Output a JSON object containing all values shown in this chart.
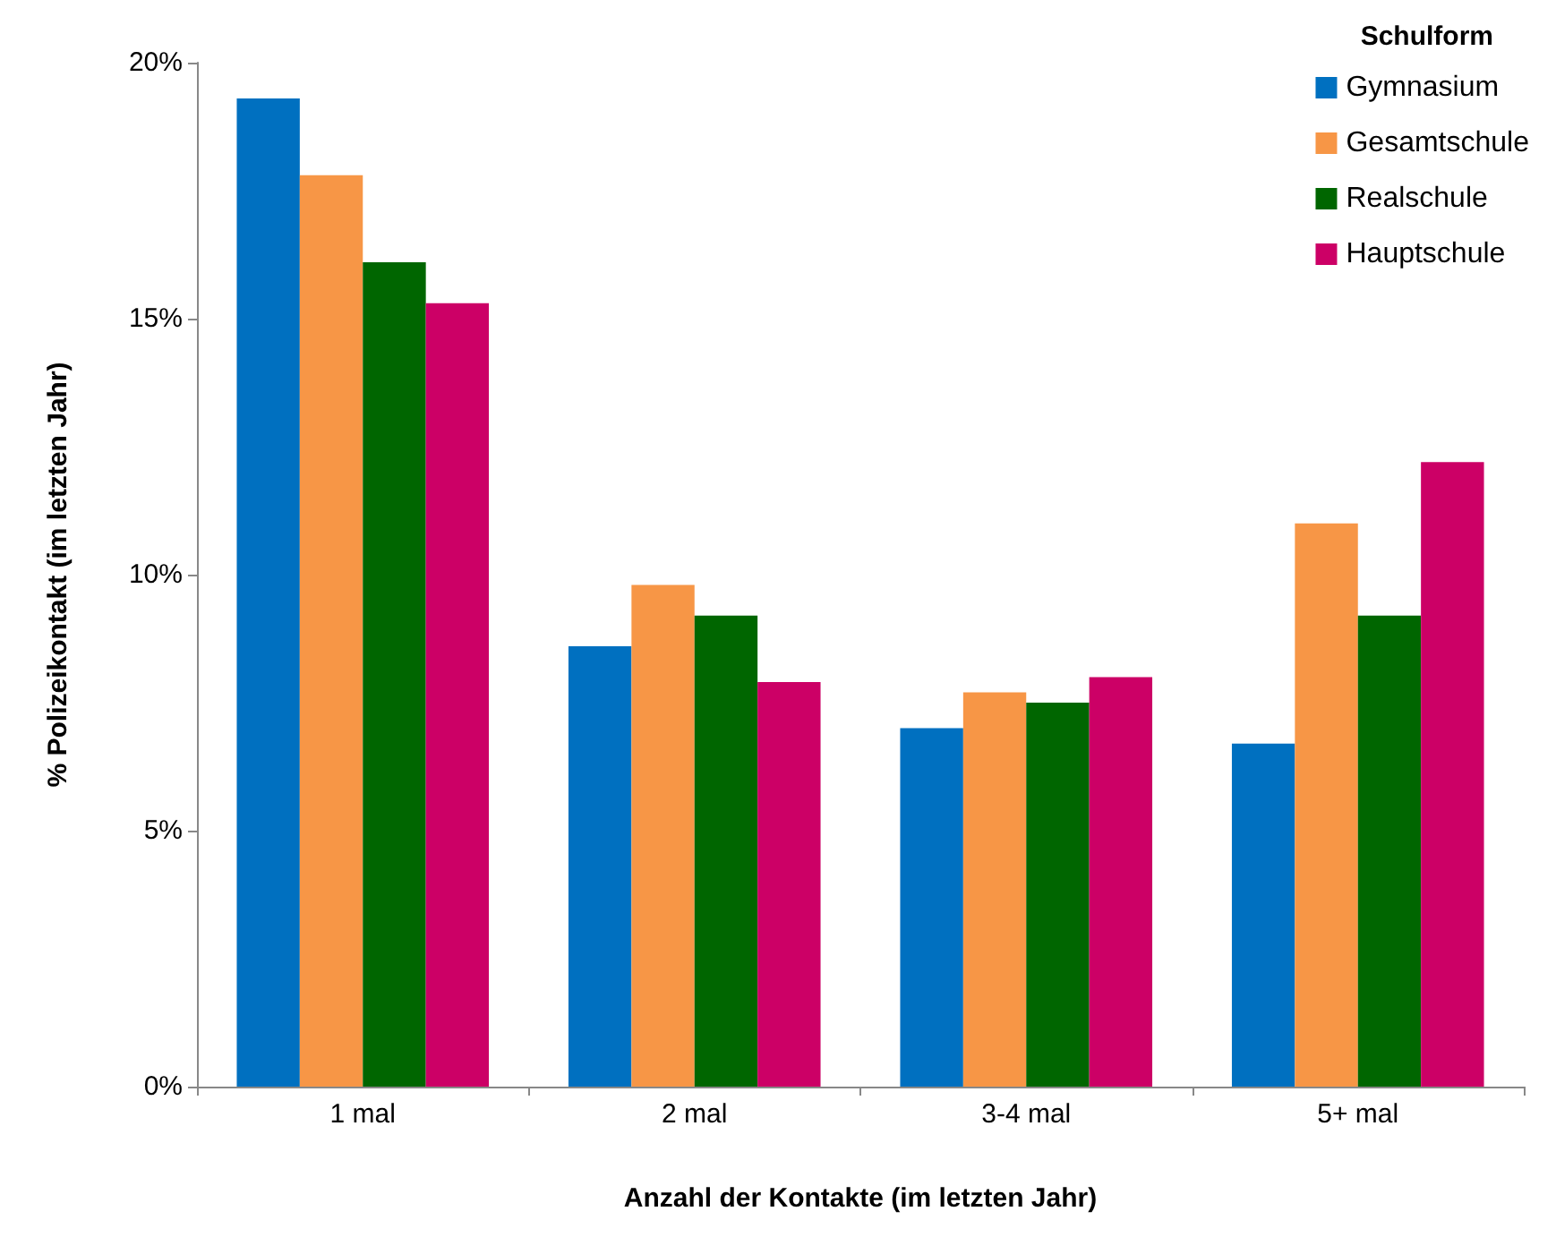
{
  "chart_data": {
    "type": "bar",
    "xlabel": "Anzahl der Kontakte (im letzten Jahr)",
    "ylabel": "% Polizeikontakt (im letzten Jahr)",
    "legend_title": "Schulform",
    "categories": [
      "1 mal",
      "2 mal",
      "3-4 mal",
      "5+ mal"
    ],
    "series": [
      {
        "name": "Gymnasium",
        "color": "#0070c0",
        "values": [
          19.3,
          8.6,
          7.0,
          6.7
        ]
      },
      {
        "name": "Gesamtschule",
        "color": "#f79646",
        "values": [
          17.8,
          9.8,
          7.7,
          11.0
        ]
      },
      {
        "name": "Realschule",
        "color": "#006600",
        "values": [
          16.1,
          9.2,
          7.5,
          9.2
        ]
      },
      {
        "name": "Hauptschule",
        "color": "#cc0066",
        "values": [
          15.3,
          7.9,
          8.0,
          12.2
        ]
      }
    ],
    "ylim": [
      0,
      20
    ],
    "yticks": [
      {
        "value": 0,
        "label": "0%"
      },
      {
        "value": 5,
        "label": "5%"
      },
      {
        "value": 10,
        "label": "10%"
      },
      {
        "value": 15,
        "label": "15%"
      },
      {
        "value": 20,
        "label": "20%"
      }
    ],
    "grid": false,
    "legend": "top right"
  }
}
